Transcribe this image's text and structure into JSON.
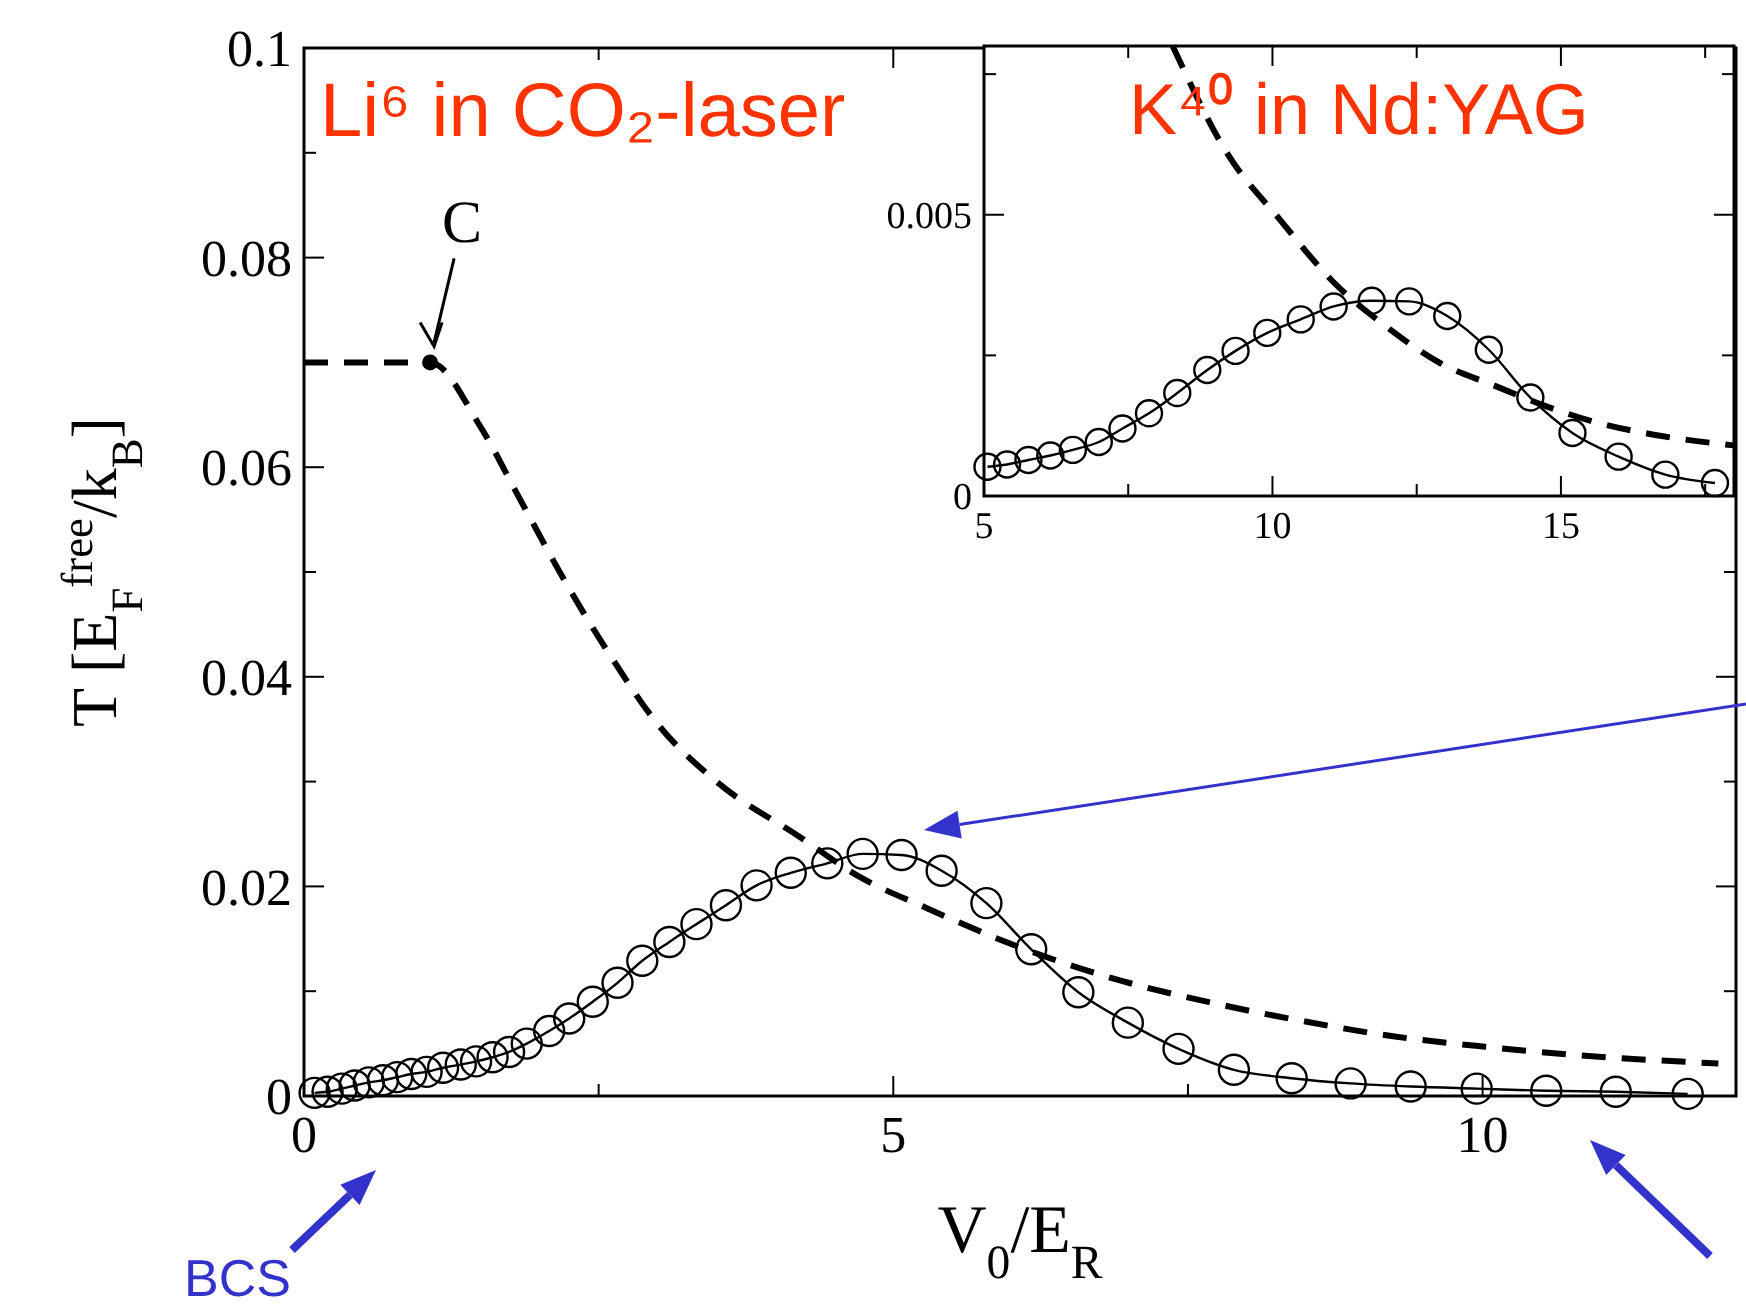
{
  "chart_data": [
    {
      "type": "line",
      "title": "Li⁶ in CO₂-laser",
      "xlabel": "V$_{0}$/E$_{R}$",
      "ylabel": "T [E$_{F}$$^{free}$/k$_{B}$]",
      "xlim": [
        0,
        12.15
      ],
      "ylim": [
        0,
        0.1
      ],
      "xticks": [
        0,
        {
          "value": 2.5,
          "label": null
        },
        5,
        {
          "value": 7.5,
          "label": null
        },
        10
      ],
      "yticks": [
        0,
        {
          "value": 0.01,
          "label": null
        },
        0.02,
        {
          "value": 0.03,
          "label": null
        },
        0.04,
        {
          "value": 0.05,
          "label": null
        },
        0.06,
        {
          "value": 0.07,
          "label": null
        },
        0.08,
        {
          "value": 0.09,
          "label": null
        },
        0.1
      ],
      "series": [
        {
          "color": "#000000",
          "marker": "circle",
          "line_style": "solid",
          "x": [
            0.09,
            0.2,
            0.32,
            0.43,
            0.55,
            0.67,
            0.79,
            0.91,
            1.04,
            1.18,
            1.33,
            1.46,
            1.6,
            1.74,
            1.89,
            2.08,
            2.25,
            2.45,
            2.66,
            2.87,
            3.1,
            3.33,
            3.58,
            3.84,
            4.13,
            4.44,
            4.74,
            5.07,
            5.41,
            5.79,
            6.17,
            6.57,
            6.99,
            7.42,
            7.89,
            8.38,
            8.88,
            9.39,
            9.95,
            10.54,
            11.13,
            11.74
          ],
          "values": [
            0.0003,
            0.0004,
            0.0007,
            0.001,
            0.0013,
            0.0015,
            0.0018,
            0.0021,
            0.0023,
            0.0027,
            0.003,
            0.0033,
            0.0037,
            0.0042,
            0.005,
            0.0062,
            0.0074,
            0.009,
            0.0108,
            0.0129,
            0.0147,
            0.0164,
            0.0182,
            0.0201,
            0.0213,
            0.0222,
            0.0231,
            0.023,
            0.0215,
            0.0184,
            0.014,
            0.0099,
            0.007,
            0.0045,
            0.0025,
            0.0017,
            0.0012,
            0.0009,
            0.0007,
            0.0005,
            0.0004,
            0.0002
          ]
        },
        {
          "color": "#000000",
          "marker": "none",
          "line_style": "dashed",
          "x": [
            0,
            1.07,
            1.49,
            1.83,
            2.22,
            2.6,
            3.0,
            3.5,
            4.21,
            4.7,
            5.29,
            6.0,
            6.87,
            7.66,
            8.45,
            9.24,
            10.02,
            10.81,
            12.0
          ],
          "values": [
            0.07,
            0.07,
            0.064,
            0.057,
            0.049,
            0.042,
            0.0355,
            0.03,
            0.0247,
            0.021,
            0.0179,
            0.0145,
            0.0112,
            0.009,
            0.0072,
            0.0057,
            0.0047,
            0.0039,
            0.0031
          ]
        }
      ],
      "annotations": [
        {
          "text": "C",
          "x": 1.07,
          "y": 0.07
        },
        "BCS"
      ]
    },
    {
      "type": "line",
      "title": "K⁴⁰ in Nd:YAG",
      "xlim": [
        5,
        18
      ],
      "ylim": [
        0,
        0.008
      ],
      "xticks": [
        5,
        {
          "value": 7.5,
          "label": null
        },
        10,
        {
          "value": 12.5,
          "label": null
        },
        15,
        {
          "value": 17.5,
          "label": null
        }
      ],
      "yticks": [
        0,
        {
          "value": 0.0025,
          "label": null
        },
        0.005,
        {
          "value": 0.0075,
          "label": null
        }
      ],
      "series": [
        {
          "color": "#000000",
          "marker": "circle",
          "line_style": "solid",
          "x": [
            5.06,
            5.4,
            5.77,
            6.15,
            6.54,
            6.99,
            7.4,
            7.86,
            8.35,
            8.87,
            9.36,
            9.91,
            10.49,
            11.06,
            11.72,
            12.37,
            13.03,
            13.75,
            14.47,
            15.2,
            16.0,
            16.81,
            17.67
          ],
          "values": [
            0.00052,
            0.00056,
            0.00064,
            0.00072,
            0.00082,
            0.00096,
            0.0012,
            0.00147,
            0.00183,
            0.00224,
            0.00258,
            0.0029,
            0.00314,
            0.00337,
            0.00347,
            0.00346,
            0.0032,
            0.0026,
            0.00175,
            0.00112,
            0.0007,
            0.00038,
            0.00023
          ]
        },
        {
          "color": "#000000",
          "marker": "none",
          "line_style": "dashed",
          "x": [
            8.27,
            9.21,
            10.14,
            11.06,
            11.99,
            12.91,
            13.83,
            14.76,
            15.68,
            16.61,
            17.99
          ],
          "values": [
            0.008,
            0.0061,
            0.0049,
            0.0038,
            0.003,
            0.00236,
            0.00197,
            0.00159,
            0.00129,
            0.00109,
            0.0009
          ]
        }
      ]
    }
  ]
}
